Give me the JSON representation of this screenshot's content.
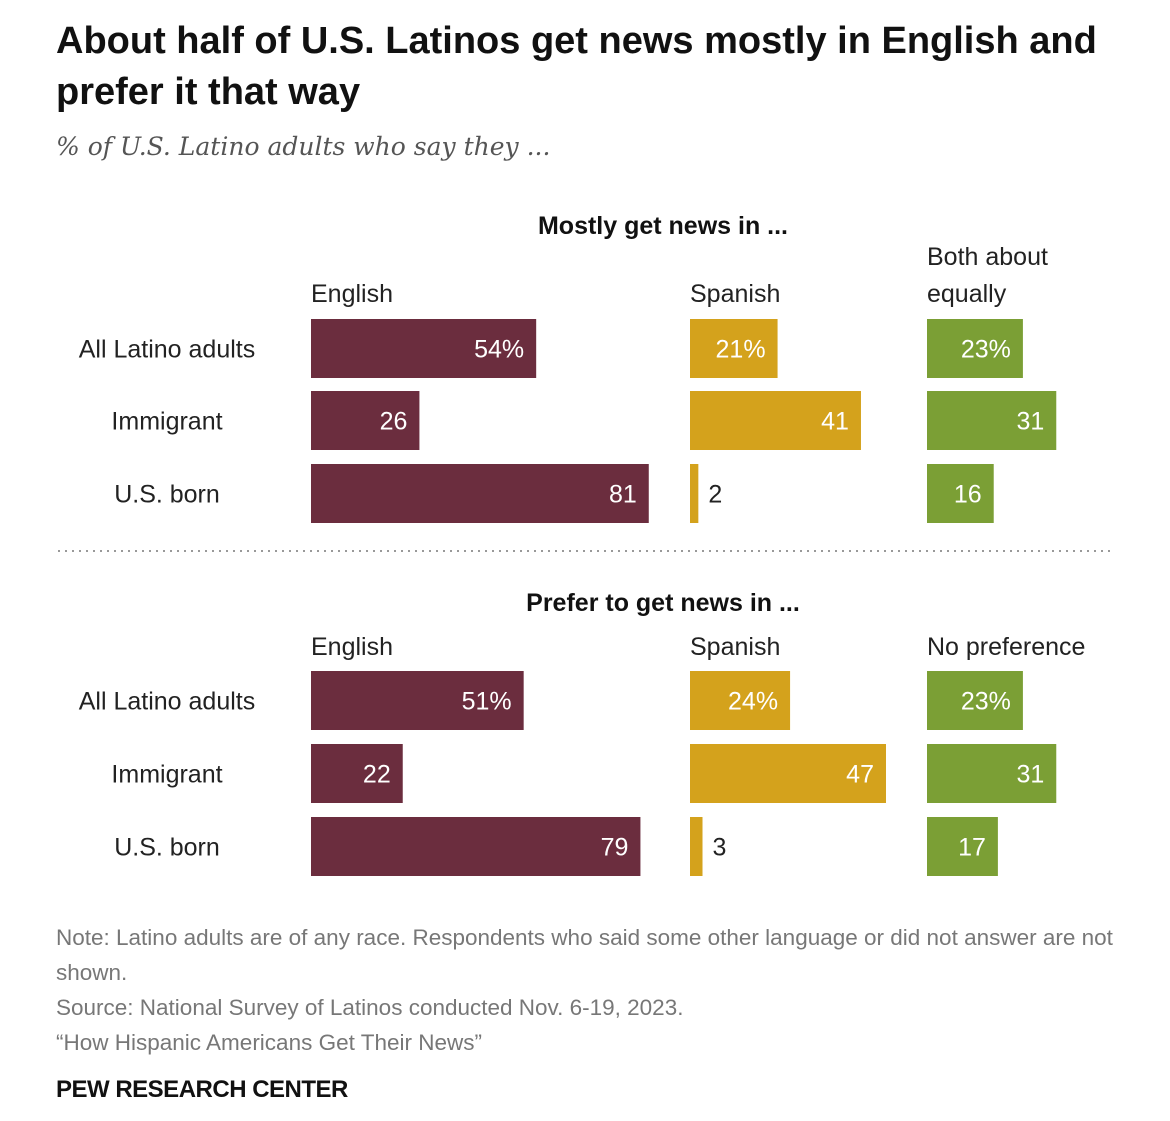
{
  "title": "About half of U.S. Latinos get news mostly in English and prefer it that way",
  "subtitle": "% of U.S. Latino adults who say they ...",
  "notes": {
    "note": "Note: Latino adults are of any race. Respondents who said some other language or did not answer are not shown.",
    "source": "Source: National Survey of Latinos conducted Nov. 6-19, 2023.",
    "report": "“How Hispanic Americans Get Their News”"
  },
  "brand": "PEW RESEARCH CENTER",
  "colors": {
    "english": "#6b2d3e",
    "spanish": "#d4a21c",
    "both": "#7b9f35"
  },
  "chart_data": [
    {
      "type": "bar",
      "title": "Mostly get news in ...",
      "categories": [
        "All Latino adults",
        "Immigrant",
        "U.S. born"
      ],
      "series": [
        {
          "name": "English",
          "values": [
            54,
            26,
            81
          ],
          "labels": [
            "54%",
            "26",
            "81"
          ]
        },
        {
          "name": "Spanish",
          "values": [
            21,
            41,
            2
          ],
          "labels": [
            "21%",
            "41",
            "2"
          ]
        },
        {
          "name": "Both about equally",
          "values": [
            23,
            31,
            16
          ],
          "labels": [
            "23%",
            "31",
            "16"
          ]
        }
      ]
    },
    {
      "type": "bar",
      "title": "Prefer to get news in ...",
      "categories": [
        "All Latino adults",
        "Immigrant",
        "U.S. born"
      ],
      "series": [
        {
          "name": "English",
          "values": [
            51,
            22,
            79
          ],
          "labels": [
            "51%",
            "22",
            "79"
          ]
        },
        {
          "name": "Spanish",
          "values": [
            24,
            47,
            3
          ],
          "labels": [
            "24%",
            "47",
            "3"
          ]
        },
        {
          "name": "No preference",
          "values": [
            23,
            31,
            17
          ],
          "labels": [
            "23%",
            "31",
            "17"
          ]
        }
      ]
    }
  ]
}
